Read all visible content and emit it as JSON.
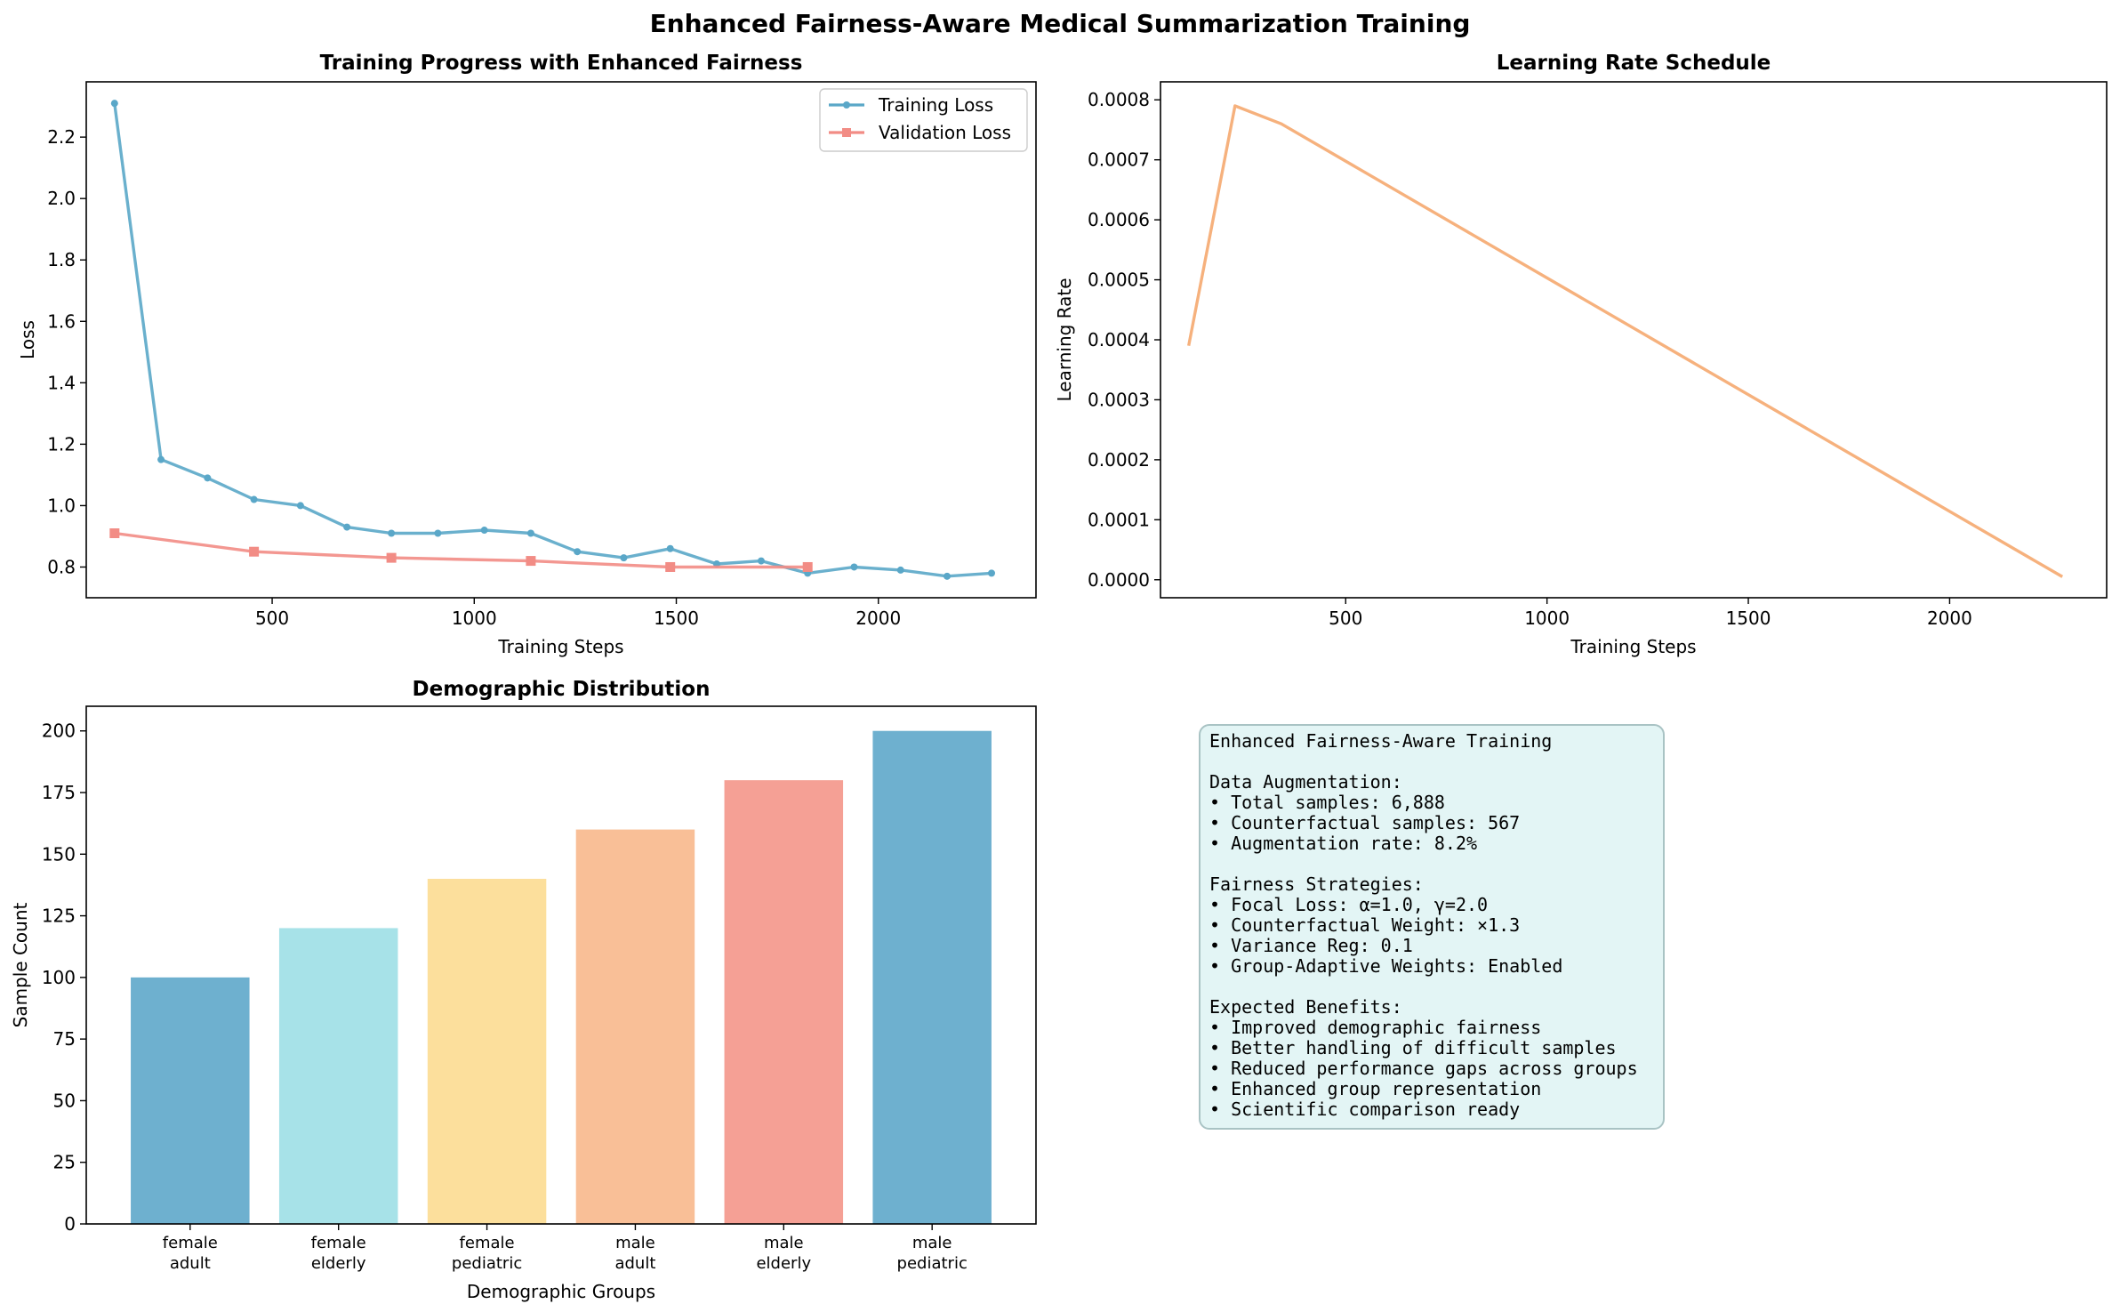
{
  "suptitle": "Enhanced Fairness-Aware Medical Summarization Training",
  "chart_data": [
    {
      "type": "line",
      "title": "Training Progress with Enhanced Fairness",
      "xlabel": "Training Steps",
      "ylabel": "Loss",
      "xlim": [
        40,
        2390
      ],
      "ylim": [
        0.7,
        2.38
      ],
      "xticks": [
        500,
        1000,
        1500,
        2000
      ],
      "yticks": [
        0.8,
        1.0,
        1.2,
        1.4,
        1.6,
        1.8,
        2.0,
        2.2
      ],
      "legend_position": "top-right",
      "series": [
        {
          "name": "Training Loss",
          "color": "#5aa7c8",
          "marker": "circle",
          "x": [
            110,
            225,
            340,
            455,
            570,
            685,
            795,
            910,
            1025,
            1140,
            1255,
            1370,
            1485,
            1600,
            1710,
            1825,
            1940,
            2055,
            2170,
            2280
          ],
          "y": [
            2.31,
            1.15,
            1.09,
            1.02,
            1.0,
            0.93,
            0.91,
            0.91,
            0.92,
            0.91,
            0.85,
            0.83,
            0.86,
            0.81,
            0.82,
            0.78,
            0.8,
            0.79,
            0.77,
            0.78
          ]
        },
        {
          "name": "Validation Loss",
          "color": "#f28c85",
          "marker": "square",
          "x": [
            110,
            455,
            795,
            1140,
            1485,
            1825
          ],
          "y": [
            0.91,
            0.85,
            0.83,
            0.82,
            0.8,
            0.8
          ]
        }
      ]
    },
    {
      "type": "line",
      "title": "Learning Rate Schedule",
      "xlabel": "Training Steps",
      "ylabel": "Learning Rate",
      "xlim": [
        40,
        2390
      ],
      "ylim": [
        -3e-05,
        0.00083
      ],
      "xticks": [
        500,
        1000,
        1500,
        2000
      ],
      "yticks": [
        0.0,
        0.0001,
        0.0002,
        0.0003,
        0.0004,
        0.0005,
        0.0006,
        0.0007,
        0.0008
      ],
      "ytick_labels": [
        "0.0000",
        "0.0001",
        "0.0002",
        "0.0003",
        "0.0004",
        "0.0005",
        "0.0006",
        "0.0007",
        "0.0008"
      ],
      "series": [
        {
          "color": "#f5a86f",
          "x": [
            110,
            225,
            340,
            2280
          ],
          "y": [
            0.00039,
            0.00079,
            0.00076,
            5e-06
          ]
        }
      ]
    },
    {
      "type": "bar",
      "title": "Demographic Distribution",
      "xlabel": "Demographic Groups",
      "ylabel": "Sample Count",
      "ylim": [
        0,
        210
      ],
      "yticks": [
        0,
        25,
        50,
        75,
        100,
        125,
        150,
        175,
        200
      ],
      "categories": [
        [
          "female",
          "adult"
        ],
        [
          "female",
          "elderly"
        ],
        [
          "female",
          "pediatric"
        ],
        [
          "male",
          "adult"
        ],
        [
          "male",
          "elderly"
        ],
        [
          "male",
          "pediatric"
        ]
      ],
      "values": [
        100,
        120,
        140,
        160,
        180,
        200
      ],
      "colors": [
        "#6eb0cf",
        "#a7e2e8",
        "#fcdf9c",
        "#f9bf97",
        "#f5a095",
        "#6eb0cf"
      ]
    }
  ],
  "info_box": {
    "lines": [
      "Enhanced Fairness-Aware Training",
      "",
      "Data Augmentation:",
      "• Total samples: 6,888",
      "• Counterfactual samples: 567",
      "• Augmentation rate: 8.2%",
      "",
      "Fairness Strategies:",
      "• Focal Loss: α=1.0, γ=2.0",
      "• Counterfactual Weight: ×1.3",
      "• Variance Reg: 0.1",
      "• Group-Adaptive Weights: Enabled",
      "",
      "Expected Benefits:",
      "• Improved demographic fairness",
      "• Better handling of difficult samples",
      "• Reduced performance gaps across groups",
      "• Enhanced group representation",
      "• Scientific comparison ready"
    ]
  }
}
